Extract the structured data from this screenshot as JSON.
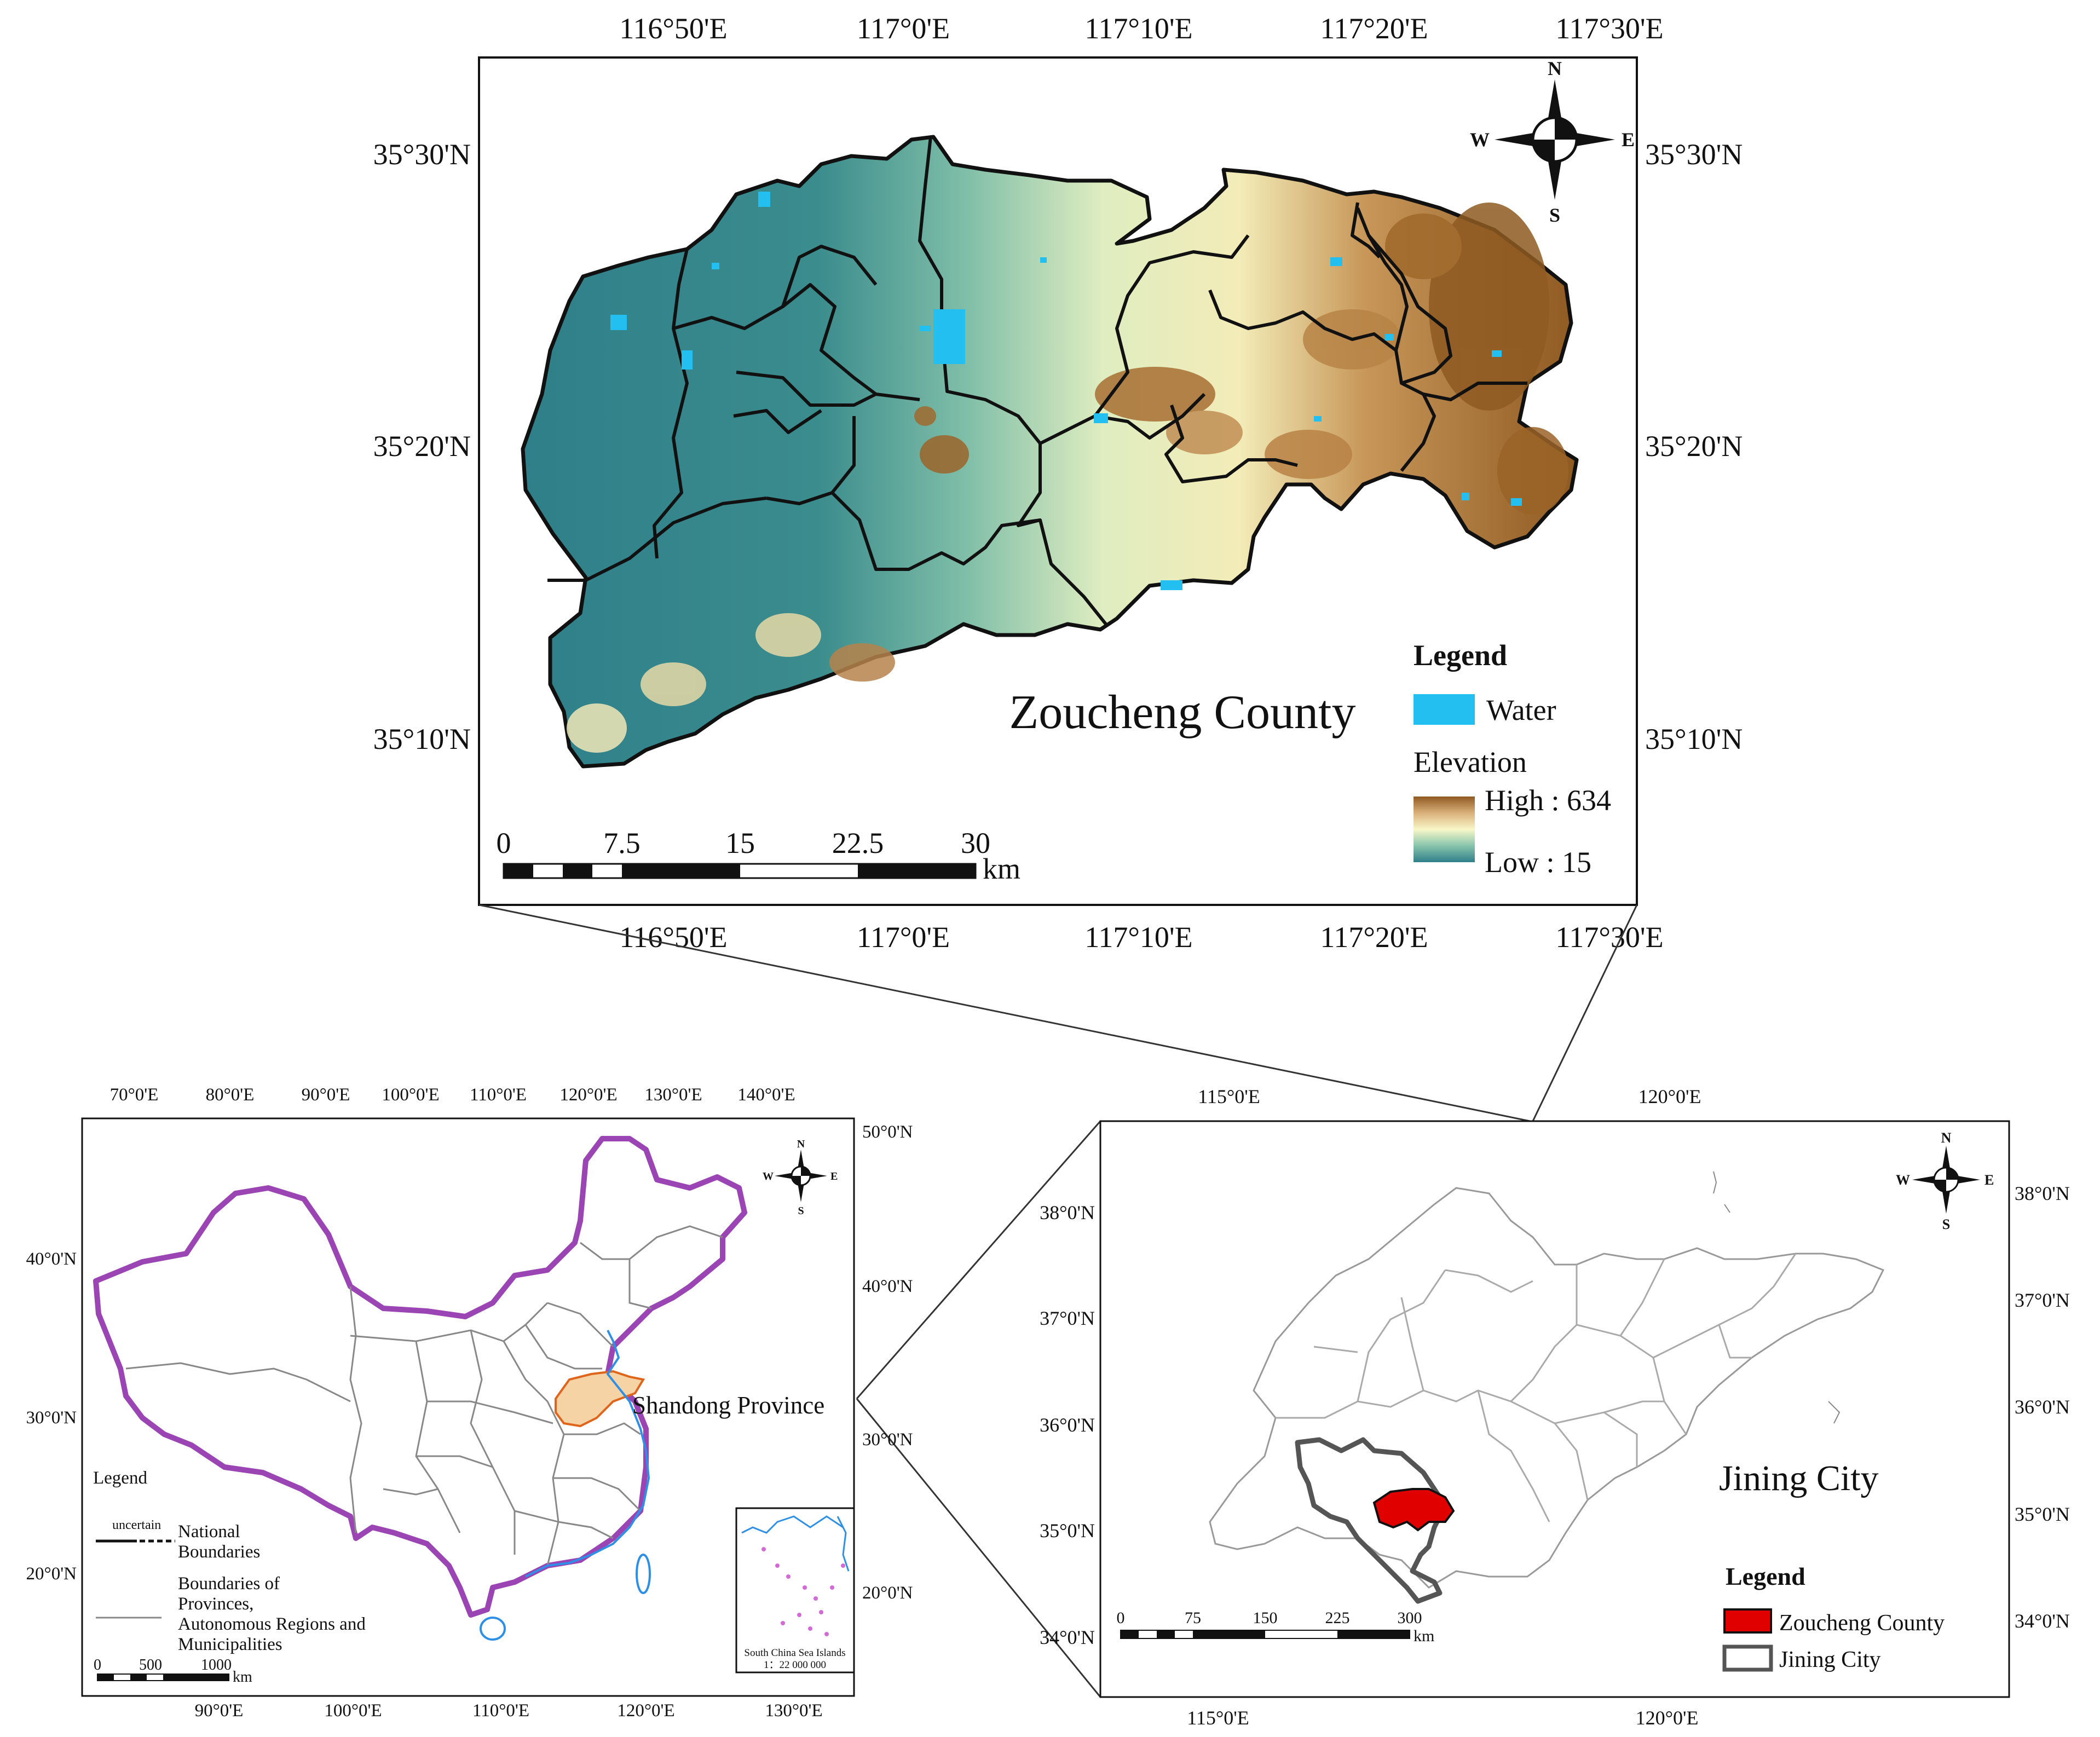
{
  "colors": {
    "water": "#22bff0",
    "elev_high": "#8f5a22",
    "elev_mid": "#f9f7c8",
    "elev_low": "#2f7f8a",
    "zoucheng_fill": "#e00000",
    "jining_outline": "#555555",
    "shandong_fill": "#f6d3a4",
    "shandong_outline": "#e0651c",
    "national_boundary": "#9b44b3",
    "coastline": "#2e8fe6"
  },
  "main_map": {
    "title": "Zoucheng County",
    "top_ticks": [
      "116°50'E",
      "117°0'E",
      "117°10'E",
      "117°20'E",
      "117°30'E"
    ],
    "bottom_ticks": [
      "116°50'E",
      "117°0'E",
      "117°10'E",
      "117°20'E",
      "117°30'E"
    ],
    "left_ticks": [
      "35°30'N",
      "35°20'N",
      "35°10'N"
    ],
    "right_ticks": [
      "35°30'N",
      "35°20'N",
      "35°10'N"
    ],
    "north_arrow": {
      "n": "N",
      "s": "S",
      "e": "E",
      "w": "W"
    },
    "scalebar": {
      "labels": [
        "0",
        "7.5",
        "15",
        "22.5",
        "30"
      ],
      "unit": "km"
    },
    "legend": {
      "title": "Legend",
      "water_label": "Water",
      "elevation_title": "Elevation",
      "high_label": "High : 634",
      "low_label": "Low : 15"
    }
  },
  "china_map": {
    "label": "Shandong Province",
    "top_ticks": [
      "70°0'E",
      "80°0'E",
      "90°0'E",
      "100°0'E",
      "110°0'E",
      "120°0'E",
      "130°0'E",
      "140°0'E"
    ],
    "bottom_ticks": [
      "90°0'E",
      "100°0'E",
      "110°0'E",
      "120°0'E",
      "130°0'E"
    ],
    "left_ticks": [
      "40°0'N",
      "30°0'N",
      "20°0'N"
    ],
    "right_ticks": [
      "50°0'N",
      "40°0'N",
      "30°0'N",
      "20°0'N"
    ],
    "north_arrow": {
      "n": "N",
      "s": "S",
      "e": "E",
      "w": "W"
    },
    "legend": {
      "title": "Legend",
      "uncertain": "uncertain",
      "national_l1": "National",
      "national_l2": "Boundaries",
      "prov_l1": "Boundaries of",
      "prov_l2": "Provinces,",
      "prov_l3": "Autonomous Regions and",
      "prov_l4": "Municipalities"
    },
    "scalebar": {
      "labels": [
        "0",
        "500",
        "1000"
      ],
      "unit": "km"
    },
    "inset": {
      "title": "South China Sea Islands",
      "scale": "1：22 000 000"
    }
  },
  "shandong_map": {
    "label": "Jining City",
    "top_ticks": [
      "115°0'E",
      "120°0'E"
    ],
    "bottom_ticks": [
      "115°0'E",
      "120°0'E"
    ],
    "left_ticks": [
      "38°0'N",
      "37°0'N",
      "36°0'N",
      "35°0'N",
      "34°0'N"
    ],
    "right_ticks": [
      "38°0'N",
      "37°0'N",
      "36°0'N",
      "35°0'N",
      "34°0'N"
    ],
    "north_arrow": {
      "n": "N",
      "s": "S",
      "e": "E",
      "w": "W"
    },
    "scalebar": {
      "labels": [
        "0",
        "75",
        "150",
        "225",
        "300"
      ],
      "unit": "km"
    },
    "legend": {
      "title": "Legend",
      "zoucheng_label": "Zoucheng County",
      "jining_label": "Jining City"
    }
  }
}
